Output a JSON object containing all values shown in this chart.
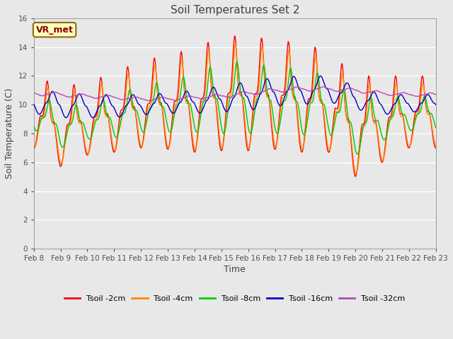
{
  "title": "Soil Temperatures Set 2",
  "xlabel": "Time",
  "ylabel": "Soil Temperature (C)",
  "ylim": [
    0,
    16
  ],
  "yticks": [
    0,
    2,
    4,
    6,
    8,
    10,
    12,
    14,
    16
  ],
  "annotation_text": "VR_met",
  "bg_color": "#e8e8e8",
  "grid_color": "#ffffff",
  "fig_bg": "#e8e8e8",
  "line_colors": [
    "#ff0000",
    "#ff8800",
    "#00cc00",
    "#0000cc",
    "#bb44bb"
  ],
  "line_labels": [
    "Tsoil -2cm",
    "Tsoil -4cm",
    "Tsoil -8cm",
    "Tsoil -16cm",
    "Tsoil -32cm"
  ],
  "xtick_labels": [
    "Feb 8",
    "Feb 9",
    "Feb 10",
    "Feb 11",
    "Feb 12",
    "Feb 13",
    "Feb 14",
    "Feb 15",
    "Feb 16",
    "Feb 17",
    "Feb 18",
    "Feb 19",
    "Feb 20",
    "Feb 21",
    "Feb 22",
    "Feb 23"
  ],
  "num_days": 15,
  "pts_per_day": 48
}
